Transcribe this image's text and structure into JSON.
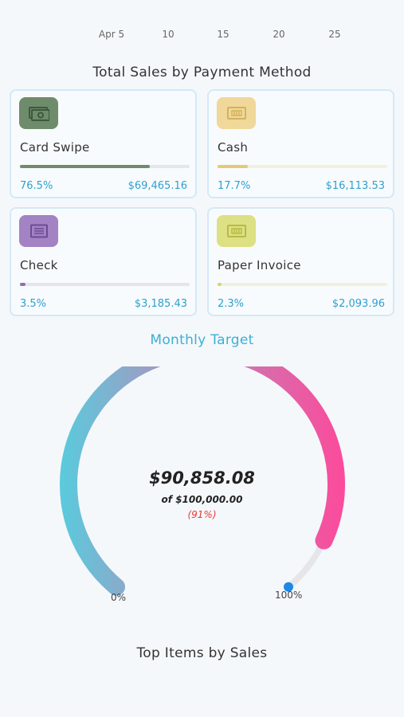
{
  "chart_axis": {
    "ticks": [
      "Apr 5",
      "10",
      "15",
      "20",
      "25"
    ]
  },
  "payment_section": {
    "title": "Total Sales by Payment Method",
    "methods": [
      {
        "name": "Card Swipe",
        "percent": "76.5%",
        "amount": "$69,465.16",
        "share": 0.765,
        "icon": "cash-bill-icon",
        "icon_bg": "#6e8c6b",
        "bar_color": "#6e8c6b",
        "track_color": "#e3e6ea"
      },
      {
        "name": "Cash",
        "percent": "17.7%",
        "amount": "$16,113.53",
        "share": 0.177,
        "icon": "banknote-icon",
        "icon_bg": "#f0d89a",
        "bar_color": "#e6c877",
        "track_color": "#f3efdf"
      },
      {
        "name": "Check",
        "percent": "3.5%",
        "amount": "$3,185.43",
        "share": 0.035,
        "icon": "cheque-icon",
        "icon_bg": "#a383c4",
        "bar_color": "#8f6fb5",
        "track_color": "#e5e3ec"
      },
      {
        "name": "Paper Invoice",
        "percent": "2.3%",
        "amount": "$2,093.96",
        "share": 0.023,
        "icon": "invoice-icon",
        "icon_bg": "#dde083",
        "bar_color": "#d4d66a",
        "track_color": "#eff1df"
      }
    ]
  },
  "monthly_target": {
    "title": "Monthly Target",
    "title_color": "#3bb0d4",
    "value": "$90,858.08",
    "of_label": "of $100,000.00",
    "percent_label": "(91%)",
    "progress": 0.91,
    "min_label": "0%",
    "max_label": "100%"
  },
  "top_items": {
    "title": "Top Items by Sales"
  }
}
